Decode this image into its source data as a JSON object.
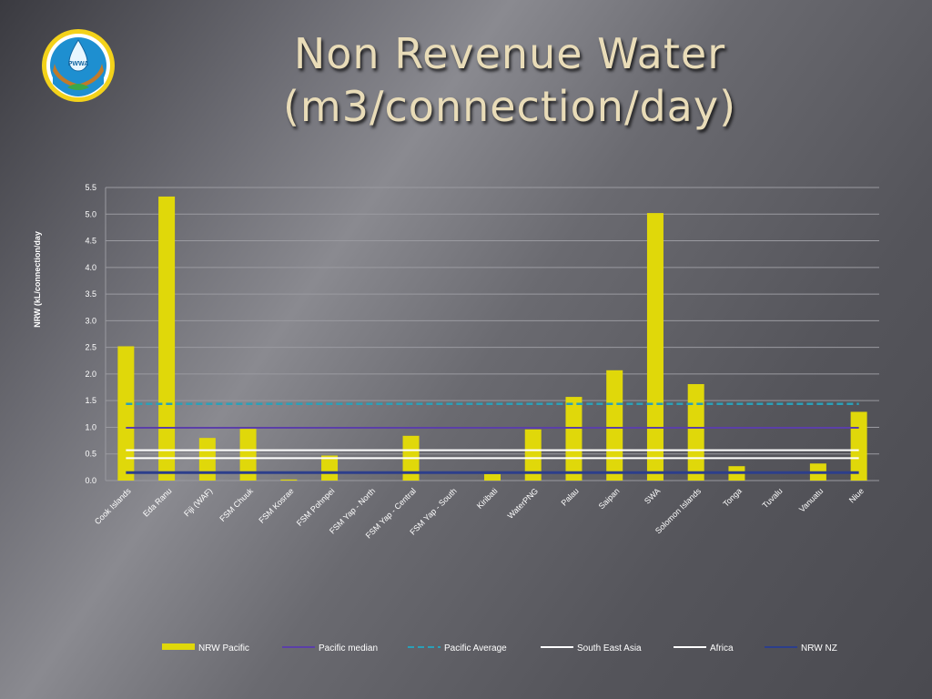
{
  "slide": {
    "title_line1": "Non Revenue Water",
    "title_line2": "(m3/connection/day)",
    "logo_text": "PWWA"
  },
  "colors": {
    "bar": "#e0d80a",
    "pacific_median": "#5b3fa8",
    "pacific_average": "#2aa0b8",
    "south_east_asia": "#ffffff",
    "africa": "#ffffff",
    "nrw_nz": "#2c3e8c",
    "title": "#e9dcb8"
  },
  "chart_data": {
    "type": "bar",
    "ylabel": "NRW (kL/connection/day",
    "ylim": [
      0,
      5.5
    ],
    "yticks": [
      "0.0",
      "0.5",
      "1.0",
      "1.5",
      "2.0",
      "2.5",
      "3.0",
      "3.5",
      "4.0",
      "4.5",
      "5.0",
      "5.5"
    ],
    "grid": true,
    "legend_position": "bottom",
    "categories": [
      "Cook Islands",
      "Eda Ranu",
      "Fiji (WAF)",
      "FSM Chuuk",
      "FSM Kosrae",
      "FSM Pohnpei",
      "FSM Yap - North",
      "FSM Yap - Central",
      "FSM Yap - South",
      "Kiribati",
      "WaterPNG",
      "Palau",
      "Saipan",
      "SWA",
      "Solomon Islands",
      "Tonga",
      "Tuvalu",
      "Vanuatu",
      "Niue"
    ],
    "series": [
      {
        "name": "NRW Pacific",
        "type": "bar",
        "values": [
          2.52,
          5.33,
          0.8,
          0.97,
          0.02,
          0.47,
          0,
          0.84,
          0,
          0.12,
          0.96,
          1.57,
          2.07,
          5.02,
          1.81,
          0.27,
          0,
          0.32,
          1.29
        ]
      },
      {
        "name": "Pacific median",
        "type": "line",
        "value": 0.99
      },
      {
        "name": "Pacific Average",
        "type": "line",
        "dashed": true,
        "value": 1.44
      },
      {
        "name": "South East Asia",
        "type": "line",
        "value": 0.57
      },
      {
        "name": "Africa",
        "type": "line",
        "value": 0.42
      },
      {
        "name": "NRW NZ",
        "type": "line",
        "value": 0.15
      }
    ]
  }
}
